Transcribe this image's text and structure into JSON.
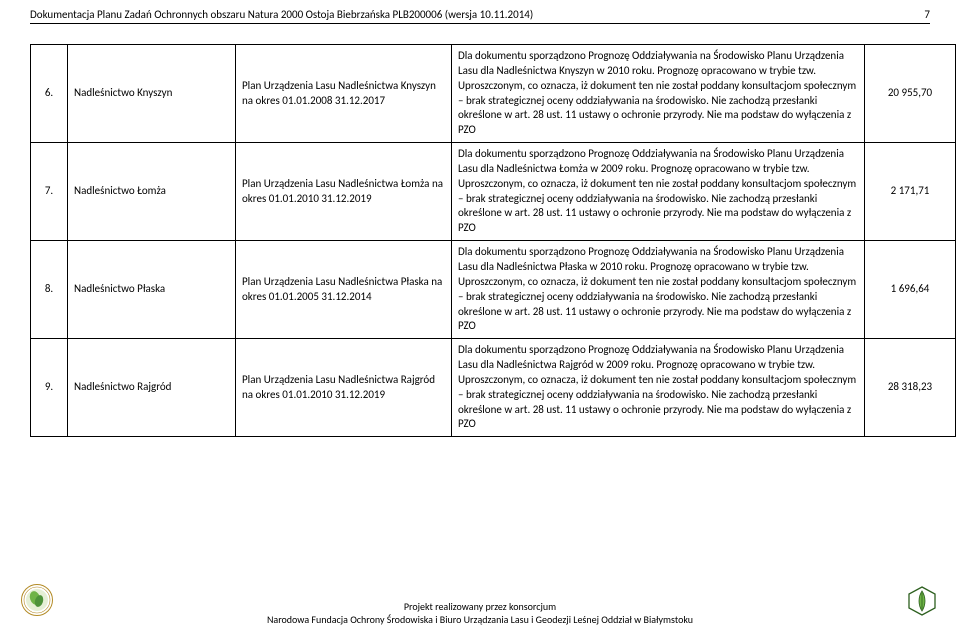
{
  "header": {
    "title": "Dokumentacja Planu Zadań Ochronnych obszaru Natura 2000 Ostoja Biebrzańska PLB200006 (wersja 10.11.2014)",
    "page_number": "7"
  },
  "rows": [
    {
      "num": "6.",
      "name": "Nadleśnictwo Knyszyn",
      "plan": "Plan Urządzenia Lasu Nadleśnictwa Knyszyn na okres 01.01.2008 31.12.2017",
      "desc": "Dla dokumentu sporządzono Prognozę Oddziaływania na Środowisko Planu Urządzenia Lasu dla Nadleśnictwa Knyszyn w 2010 roku. Prognozę opracowano w trybie tzw. Uproszczonym, co oznacza, iż dokument ten nie został poddany konsultacjom społecznym – brak strategicznej oceny oddziaływania na środowisko. Nie zachodzą przesłanki określone w art. 28 ust. 11 ustawy o ochronie przyrody. Nie ma podstaw do wyłączenia z PZO",
      "value": "20 955,70"
    },
    {
      "num": "7.",
      "name": "Nadleśnictwo Łomża",
      "plan": "Plan Urządzenia Lasu Nadleśnictwa Łomża na okres 01.01.2010 31.12.2019",
      "desc": "Dla dokumentu sporządzono Prognozę Oddziaływania na Środowisko Planu Urządzenia Lasu dla Nadleśnictwa Łomża w 2009 roku. Prognozę opracowano w trybie tzw. Uproszczonym, co oznacza, iż dokument ten nie został poddany konsultacjom społecznym – brak strategicznej oceny oddziaływania na środowisko. Nie zachodzą przesłanki określone w art. 28 ust. 11 ustawy o ochronie przyrody. Nie ma podstaw do wyłączenia z PZO",
      "value": "2 171,71"
    },
    {
      "num": "8.",
      "name": "Nadleśnictwo Płaska",
      "plan": "Plan Urządzenia Lasu Nadleśnictwa Płaska na okres 01.01.2005 31.12.2014",
      "desc": "Dla dokumentu sporządzono Prognozę Oddziaływania na Środowisko Planu Urządzenia Lasu dla Nadleśnictwa Płaska w 2010 roku. Prognozę opracowano w trybie tzw. Uproszczonym, co oznacza, iż dokument ten nie został poddany konsultacjom społecznym – brak strategicznej oceny oddziaływania na środowisko. Nie zachodzą przesłanki określone w art. 28 ust. 11 ustawy o ochronie przyrody. Nie ma podstaw do wyłączenia z PZO",
      "value": "1 696,64"
    },
    {
      "num": "9.",
      "name": "Nadleśnictwo Rajgród",
      "plan": "Plan Urządzenia Lasu Nadleśnictwa Rajgród na okres 01.01.2010 31.12.2019",
      "desc": "Dla dokumentu sporządzono Prognozę Oddziaływania na Środowisko Planu Urządzenia Lasu dla Nadleśnictwa Rajgród w 2009 roku. Prognozę opracowano w trybie tzw. Uproszczonym, co oznacza, iż dokument ten nie został poddany konsultacjom społecznym – brak strategicznej oceny oddziaływania na środowisko. Nie zachodzą przesłanki określone w art. 28 ust. 11 ustawy o ochronie przyrody. Nie ma podstaw do wyłączenia z PZO",
      "value": "28 318,23"
    }
  ],
  "footer": {
    "line1": "Projekt realizowany przez konsorcjum",
    "line2": "Narodowa Fundacja Ochrony Środowiska i Biuro Urządzania Lasu i Geodezji Leśnej Oddział w Białymstoku"
  },
  "colors": {
    "leaf_fill": "#6fb347",
    "leaf_stroke": "#2c5f1e",
    "circle_stroke": "#b38b26"
  }
}
